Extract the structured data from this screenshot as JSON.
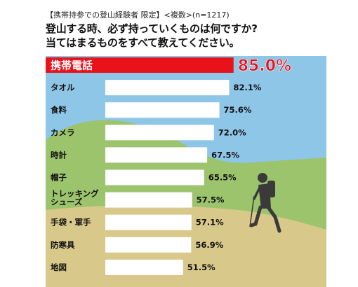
{
  "header": {
    "note": "【携帯持参での登山経験者 限定】<複数>(n=1217)",
    "question_line1": "登山する時、必ず持っていくものは何ですか?",
    "question_line2": "当てはまるものをすべて教えてください。"
  },
  "colors": {
    "sky": "#8ec6e8",
    "hill_back": "#9cc46c",
    "hill_front": "#d8c98a",
    "bar": "#ffffff",
    "highlight_bar": "#e8121b",
    "highlight_text": "#ffffff",
    "value_text": "#111111",
    "highlight_value": "#e8121b"
  },
  "chart_data": {
    "type": "bar",
    "orientation": "horizontal",
    "categories": [
      "携帯電話",
      "タオル",
      "食料",
      "カメラ",
      "時計",
      "帽子",
      "トレッキングシューズ",
      "手袋・軍手",
      "防寒具",
      "地図"
    ],
    "category_display": [
      [
        "携帯電話"
      ],
      [
        "タオル"
      ],
      [
        "食料"
      ],
      [
        "カメラ"
      ],
      [
        "時計"
      ],
      [
        "帽子"
      ],
      [
        "トレッキング",
        "シューズ"
      ],
      [
        "手袋・軍手"
      ],
      [
        "防寒具"
      ],
      [
        "地図"
      ]
    ],
    "values": [
      85.0,
      82.1,
      75.6,
      72.0,
      67.5,
      65.5,
      57.5,
      57.1,
      56.9,
      51.5
    ],
    "value_labels": [
      "85.0%",
      "82.1%",
      "75.6%",
      "72.0%",
      "67.5%",
      "65.5%",
      "57.5%",
      "57.1%",
      "56.9%",
      "51.5%"
    ],
    "highlight_index": 0,
    "unit": "%"
  }
}
